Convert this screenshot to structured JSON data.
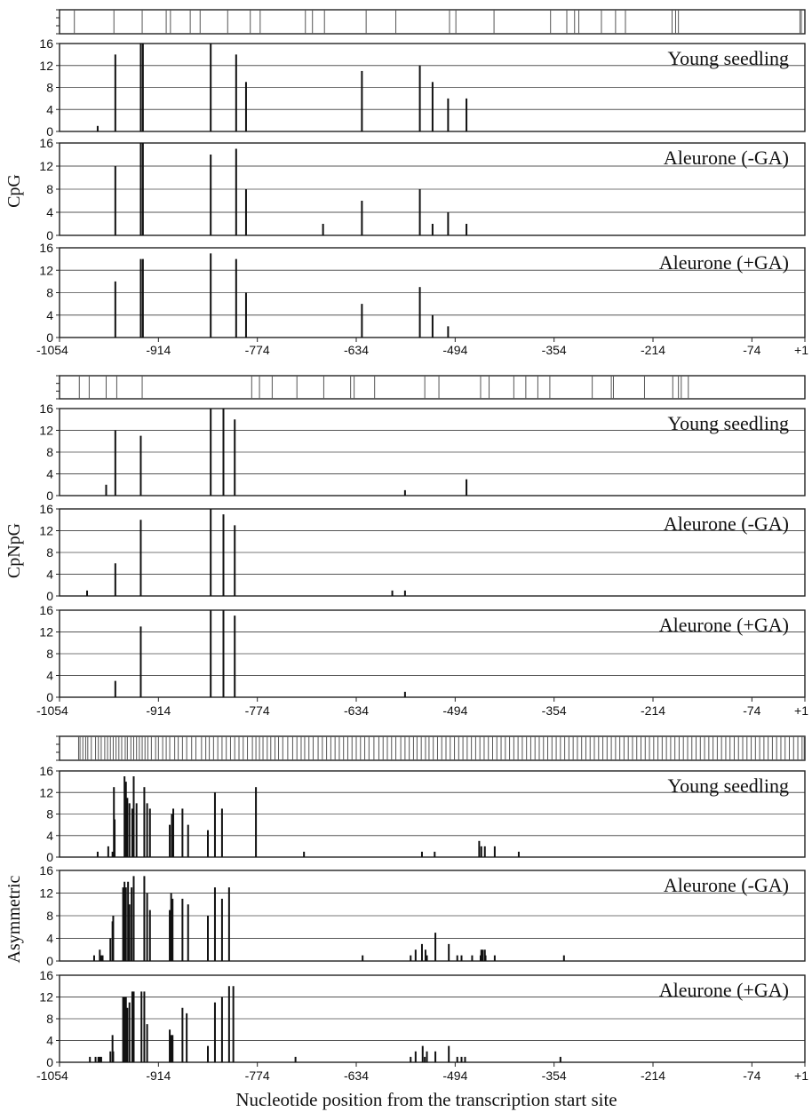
{
  "figure": {
    "xlabel": "Nucleotide position from the transcription start site",
    "x_ticks": [
      "-1054",
      "-914",
      "-774",
      "-634",
      "-494",
      "-354",
      "-214",
      "-74",
      "+1"
    ],
    "x_tick_values": [
      -1054,
      -914,
      -774,
      -634,
      -494,
      -354,
      -214,
      -74,
      1
    ],
    "xlim": [
      -1054,
      1
    ],
    "y_ticks": [
      "0",
      "4",
      "8",
      "12",
      "16"
    ],
    "ylim": [
      0,
      16
    ]
  },
  "chart_data": [
    {
      "type": "bar",
      "group": "CpG",
      "site_positions": [
        -1033,
        -977,
        -937,
        -903,
        -897,
        -869,
        -855,
        -816,
        -784,
        -770,
        -706,
        -696,
        -679,
        -620,
        -578,
        -502,
        -493,
        -439,
        -359,
        -336,
        -325,
        -319,
        -287,
        -267,
        -253,
        -187,
        -178,
        -182,
        -6,
        -4
      ],
      "panels": [
        {
          "title": "Young seedling",
          "x": [
            -1000,
            -975,
            -939,
            -936,
            -840,
            -804,
            -790,
            -626,
            -544,
            -526,
            -504,
            -478
          ],
          "values": [
            1,
            14,
            16,
            16,
            16,
            14,
            9,
            11,
            12,
            9,
            6,
            6
          ]
        },
        {
          "title": "Aleurone (-GA)",
          "x": [
            -975,
            -939,
            -936,
            -840,
            -804,
            -790,
            -681,
            -626,
            -544,
            -526,
            -504,
            -478
          ],
          "values": [
            12,
            16,
            16,
            14,
            15,
            8,
            2,
            6,
            8,
            2,
            4,
            2
          ]
        },
        {
          "title": "Aleurone (+GA)",
          "x": [
            -975,
            -939,
            -936,
            -840,
            -804,
            -790,
            -626,
            -544,
            -526,
            -504
          ],
          "values": [
            10,
            14,
            14,
            15,
            14,
            8,
            6,
            9,
            4,
            2
          ]
        }
      ]
    },
    {
      "type": "bar",
      "group": "CpNpG",
      "site_positions": [
        -1026,
        -1012,
        -988,
        -973,
        -937,
        -782,
        -771,
        -753,
        -718,
        -680,
        -642,
        -637,
        -608,
        -537,
        -517,
        -458,
        -446,
        -411,
        -394,
        -377,
        -360,
        -300,
        -273,
        -270,
        -226,
        -186,
        -178,
        -174,
        -164
      ],
      "panels": [
        {
          "title": "Young seedling",
          "x": [
            -988,
            -975,
            -939,
            -840,
            -822,
            -806,
            -565,
            -478
          ],
          "values": [
            2,
            12,
            11,
            16,
            16,
            14,
            1,
            3
          ]
        },
        {
          "title": "Aleurone (-GA)",
          "x": [
            -1015,
            -975,
            -939,
            -840,
            -822,
            -806,
            -583,
            -565
          ],
          "values": [
            1,
            6,
            14,
            16,
            15,
            13,
            1,
            1
          ]
        },
        {
          "title": "Aleurone (+GA)",
          "x": [
            -975,
            -939,
            -840,
            -822,
            -806,
            -565
          ],
          "values": [
            3,
            13,
            16,
            16,
            15,
            1
          ]
        }
      ]
    },
    {
      "type": "bar",
      "group": "Asymmetric",
      "site_positions": [
        -1027,
        -1025,
        -1021,
        -1017,
        -1014,
        -1009,
        -1003,
        -999,
        -995,
        -990,
        -986,
        -982,
        -978,
        -974,
        -970,
        -966,
        -961,
        -958,
        -953,
        -949,
        -945,
        -941,
        -937,
        -933,
        -929,
        -924,
        -918,
        -914,
        -908,
        -903,
        -898,
        -891,
        -886,
        -880,
        -874,
        -867,
        -861,
        -853,
        -847,
        -842,
        -836,
        -830,
        -824,
        -818,
        -812,
        -806,
        -800,
        -794,
        -788,
        -781,
        -776,
        -771,
        -766,
        -760,
        -755,
        -749,
        -744,
        -738,
        -731,
        -724,
        -718,
        -712,
        -707,
        -701,
        -695,
        -688,
        -682,
        -676,
        -670,
        -664,
        -658,
        -652,
        -646,
        -640,
        -634,
        -628,
        -622,
        -616,
        -609,
        -602,
        -596,
        -590,
        -584,
        -578,
        -571,
        -565,
        -559,
        -553,
        -548,
        -542,
        -536,
        -531,
        -525,
        -519,
        -513,
        -507,
        -501,
        -495,
        -489,
        -483,
        -477,
        -471,
        -465,
        -459,
        -453,
        -447,
        -441,
        -435,
        -429,
        -423,
        -417,
        -411,
        -405,
        -399,
        -393,
        -387,
        -381,
        -375,
        -369,
        -363,
        -357,
        -351,
        -345,
        -339,
        -333,
        -327,
        -321,
        -315,
        -309,
        -303,
        -297,
        -291,
        -285,
        -279,
        -273,
        -267,
        -261,
        -255,
        -249,
        -243,
        -237,
        -231,
        -225,
        -219,
        -213,
        -207,
        -201,
        -195,
        -189,
        -183,
        -177,
        -171,
        -165,
        -159,
        -153,
        -147,
        -141,
        -135,
        -129,
        -123,
        -117,
        -111,
        -105,
        -99,
        -93,
        -87,
        -81,
        -75,
        -69,
        -63,
        -57,
        -51,
        -45,
        -39,
        -33,
        -27,
        -21,
        -15,
        -9,
        -3,
        0
      ],
      "panels": [
        {
          "title": "Young seedling",
          "x": [
            -1000,
            -985,
            -979,
            -977,
            -976,
            -962,
            -960,
            -958,
            -955,
            -951,
            -949,
            -945,
            -934,
            -930,
            -926,
            -898,
            -895,
            -893,
            -880,
            -872,
            -844,
            -834,
            -824,
            -776,
            -708,
            -541,
            -523,
            -460,
            -457,
            -452,
            -438,
            -404
          ],
          "values": [
            1,
            2,
            1,
            13,
            7,
            15,
            14,
            11,
            10,
            9,
            15,
            10,
            13,
            10,
            9,
            6,
            8,
            9,
            9,
            6,
            5,
            12,
            9,
            13,
            1,
            1,
            1,
            3,
            2,
            2,
            2,
            1
          ]
        },
        {
          "title": "Aleurone (-GA)",
          "x": [
            -1005,
            -997,
            -995,
            -993,
            -982,
            -979,
            -978,
            -964,
            -962,
            -960,
            -957,
            -955,
            -952,
            -949,
            -934,
            -930,
            -926,
            -898,
            -896,
            -894,
            -880,
            -872,
            -844,
            -834,
            -824,
            -814,
            -625,
            -557,
            -550,
            -541,
            -536,
            -534,
            -522,
            -503,
            -491,
            -485,
            -470,
            -458,
            -457,
            -455,
            -452,
            -451,
            -438,
            -340
          ],
          "values": [
            1,
            2,
            1,
            1,
            4,
            7,
            8,
            13,
            14,
            13,
            14,
            10,
            13,
            15,
            15,
            12,
            9,
            9,
            12,
            11,
            11,
            10,
            8,
            13,
            11,
            13,
            1,
            1,
            2,
            3,
            2,
            1,
            5,
            3,
            1,
            1,
            1,
            1,
            2,
            2,
            2,
            1,
            1,
            1
          ]
        },
        {
          "title": "Aleurone (+GA)",
          "x": [
            -1011,
            -1003,
            -999,
            -997,
            -995,
            -982,
            -979,
            -978,
            -964,
            -962,
            -960,
            -958,
            -955,
            -951,
            -949,
            -938,
            -934,
            -930,
            -898,
            -896,
            -894,
            -880,
            -874,
            -844,
            -834,
            -824,
            -814,
            -808,
            -720,
            -557,
            -550,
            -540,
            -537,
            -534,
            -522,
            -503,
            -491,
            -485,
            -480,
            -345
          ],
          "values": [
            1,
            1,
            1,
            1,
            1,
            2,
            5,
            2,
            12,
            12,
            12,
            10,
            11,
            13,
            13,
            13,
            13,
            7,
            6,
            5,
            5,
            10,
            9,
            3,
            11,
            12,
            14,
            14,
            1,
            1,
            2,
            3,
            1,
            2,
            2,
            3,
            1,
            1,
            1,
            1
          ]
        }
      ]
    }
  ]
}
